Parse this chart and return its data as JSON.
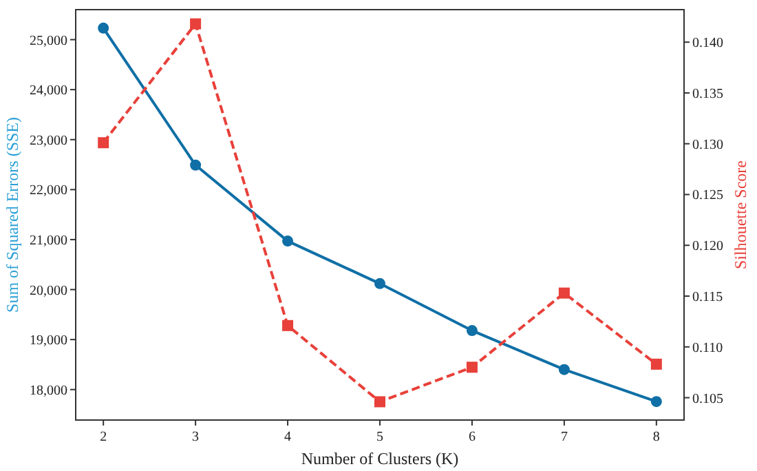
{
  "chart_data": {
    "type": "line",
    "xlabel": "Number of Clusters (K)",
    "ylabel": "Sum of Squared Errors (SSE)",
    "y2label": "Silhouette Score",
    "x": [
      2,
      3,
      4,
      5,
      6,
      7,
      8
    ],
    "xlim": [
      1.7,
      8.3
    ],
    "xticks": [
      2,
      3,
      4,
      5,
      6,
      7,
      8
    ],
    "ylim": [
      17390,
      25600
    ],
    "yticks": [
      {
        "value": 18000,
        "label": "18,000"
      },
      {
        "value": 19000,
        "label": "19,000"
      },
      {
        "value": 20000,
        "label": "20,000"
      },
      {
        "value": 21000,
        "label": "21,000"
      },
      {
        "value": 22000,
        "label": "22,000"
      },
      {
        "value": 23000,
        "label": "23,000"
      },
      {
        "value": 24000,
        "label": "24,000"
      },
      {
        "value": 25000,
        "label": "25,000"
      }
    ],
    "y2lim": [
      0.1028,
      0.1432
    ],
    "y2ticks": [
      {
        "value": 0.105,
        "label": "0.105"
      },
      {
        "value": 0.11,
        "label": "0.110"
      },
      {
        "value": 0.115,
        "label": "0.115"
      },
      {
        "value": 0.12,
        "label": "0.120"
      },
      {
        "value": 0.125,
        "label": "0.125"
      },
      {
        "value": 0.13,
        "label": "0.130"
      },
      {
        "value": 0.135,
        "label": "0.135"
      },
      {
        "value": 0.14,
        "label": "0.140"
      }
    ],
    "series": [
      {
        "color": "#0f6fa6",
        "values": [
          25230,
          22490,
          20970,
          20120,
          19180,
          18400,
          17760
        ],
        "marker": "circle",
        "line_style": "solid"
      },
      {
        "color": "#e8403a",
        "values": [
          0.1301,
          0.1418,
          0.1121,
          0.1046,
          0.108,
          0.1153,
          0.1083
        ],
        "axis": "y2",
        "marker": "square",
        "line_style": "dashed"
      }
    ]
  }
}
